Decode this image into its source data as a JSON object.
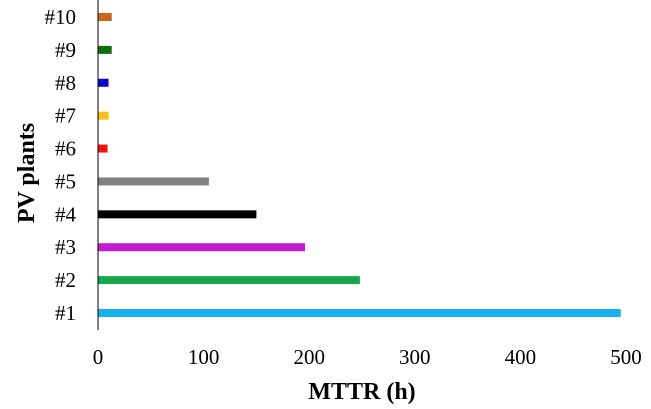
{
  "chart_data": {
    "type": "bar",
    "orientation": "horizontal",
    "title": "",
    "xlabel": "MTTR (h)",
    "ylabel": "PV plants",
    "categories": [
      "#1",
      "#2",
      "#3",
      "#4",
      "#5",
      "#6",
      "#7",
      "#8",
      "#9",
      "#10"
    ],
    "values": [
      495,
      248,
      196,
      150,
      105,
      9,
      10,
      10,
      13,
      13
    ],
    "colors": [
      "#17b0f0",
      "#17a74c",
      "#c21bd1",
      "#000000",
      "#808080",
      "#f21212",
      "#f8c21a",
      "#0a0acc",
      "#0f6f0f",
      "#c8661f"
    ],
    "xlim": [
      0,
      500
    ],
    "xticks": [
      0,
      100,
      200,
      300,
      400,
      500
    ],
    "grid": false,
    "legend": "none"
  }
}
